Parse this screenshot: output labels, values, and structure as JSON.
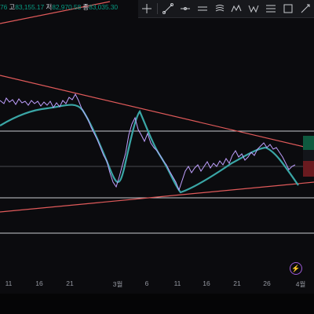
{
  "ohlc": {
    "open_tail": "76",
    "high_key": "고",
    "high_val": "83,155.17",
    "low_key": "저",
    "low_val": "82,970.58",
    "close_key": "종",
    "close_val": "83,035.30"
  },
  "toolbar": {
    "icons": [
      "cursor-cross-icon",
      "trend-line-icon",
      "horizontal-line-icon",
      "parallel-channel-icon",
      "fib-retracement-icon",
      "pattern-icon",
      "xabcd-icon",
      "rectangle-icon",
      "measure-icon",
      "brush-icon"
    ]
  },
  "x_axis": {
    "labels": [
      "11",
      "16",
      "21",
      "3월",
      "6",
      "11",
      "16",
      "21",
      "26",
      "4월"
    ]
  },
  "colors": {
    "background": "#0b0b0e",
    "trendline": "#e05a5a",
    "horizontal_line": "#c9cbd0",
    "moving_average": "#3aa6a6",
    "price": "#c0a0ff"
  },
  "misc": {
    "bolt_icon": "lightning-icon"
  }
}
